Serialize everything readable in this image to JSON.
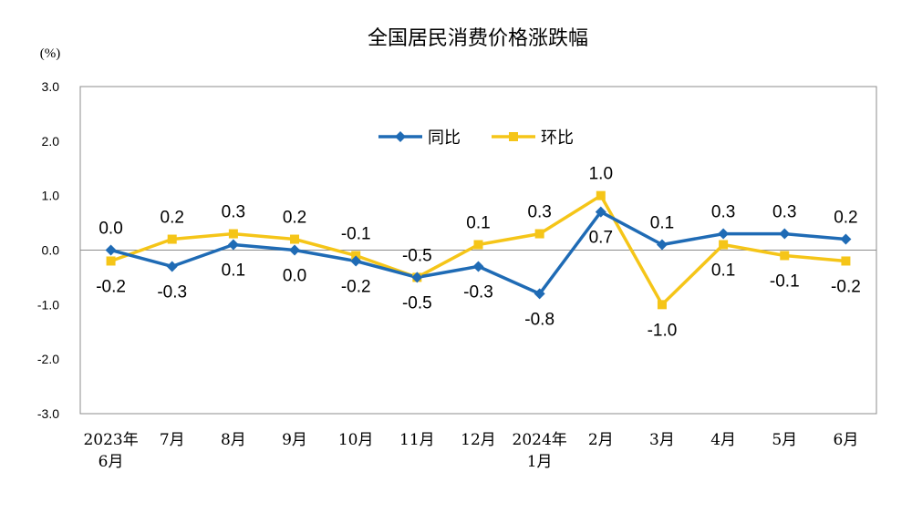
{
  "chart_data": {
    "type": "line",
    "title": "全国居民消费价格涨跌幅",
    "unit_label": "(%)",
    "ylim": [
      -3.0,
      3.0
    ],
    "yticks": [
      "3.0",
      "2.0",
      "1.0",
      "0.0",
      "-1.0",
      "-2.0",
      "-3.0"
    ],
    "categories": [
      [
        "2023年",
        "6月"
      ],
      [
        "7月"
      ],
      [
        "8月"
      ],
      [
        "9月"
      ],
      [
        "10月"
      ],
      [
        "11月"
      ],
      [
        "12月"
      ],
      [
        "2024年",
        "1月"
      ],
      [
        "2月"
      ],
      [
        "3月"
      ],
      [
        "4月"
      ],
      [
        "5月"
      ],
      [
        "6月"
      ]
    ],
    "legend_position": "top-center",
    "series": [
      {
        "name": "同比",
        "color": "#1f6bb5",
        "marker": "diamond",
        "values": [
          0.0,
          -0.3,
          0.1,
          0.0,
          -0.2,
          -0.5,
          -0.3,
          -0.8,
          0.7,
          0.1,
          0.3,
          0.3,
          0.2
        ],
        "labels": [
          "0.0",
          "-0.3",
          "0.1",
          "0.0",
          "-0.2",
          "-0.5",
          "-0.3",
          "-0.8",
          "0.7",
          "0.1",
          "0.3",
          "0.3",
          "0.2"
        ]
      },
      {
        "name": "环比",
        "color": "#f5c518",
        "marker": "square",
        "values": [
          -0.2,
          0.2,
          0.3,
          0.2,
          -0.1,
          -0.5,
          0.1,
          0.3,
          1.0,
          -1.0,
          0.1,
          -0.1,
          -0.2
        ],
        "labels": [
          "-0.2",
          "0.2",
          "0.3",
          "0.2",
          "-0.1",
          "-0.5",
          "0.1",
          "0.3",
          "1.0",
          "-1.0",
          "0.1",
          "-0.1",
          "-0.2"
        ]
      }
    ]
  }
}
